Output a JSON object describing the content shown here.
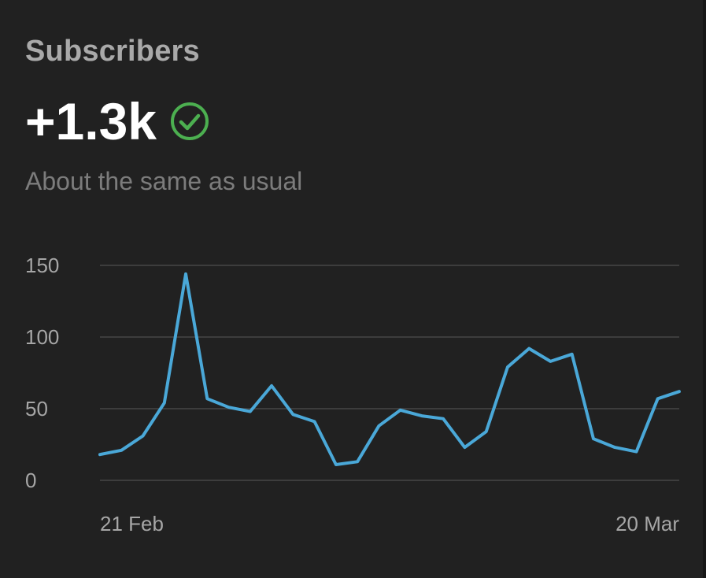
{
  "card": {
    "title": "Subscribers",
    "metric": "+1.3k",
    "status_icon": "check-circle-icon",
    "status_color": "#4caf50",
    "subtitle": "About the same as usual"
  },
  "chart_data": {
    "type": "line",
    "title": "",
    "xlabel": "",
    "ylabel": "",
    "x_tick_labels": [
      "21 Feb",
      "20 Mar"
    ],
    "y_ticks": [
      0,
      50,
      100,
      150
    ],
    "ylim": [
      0,
      150
    ],
    "grid": true,
    "line_color": "#4aa8d8",
    "series": [
      {
        "values": [
          18,
          21,
          31,
          54,
          144,
          57,
          51,
          48,
          66,
          46,
          41,
          11,
          13,
          38,
          49,
          45,
          43,
          23,
          34,
          79,
          92,
          83,
          88,
          29,
          23,
          20,
          57,
          62
        ]
      }
    ]
  }
}
